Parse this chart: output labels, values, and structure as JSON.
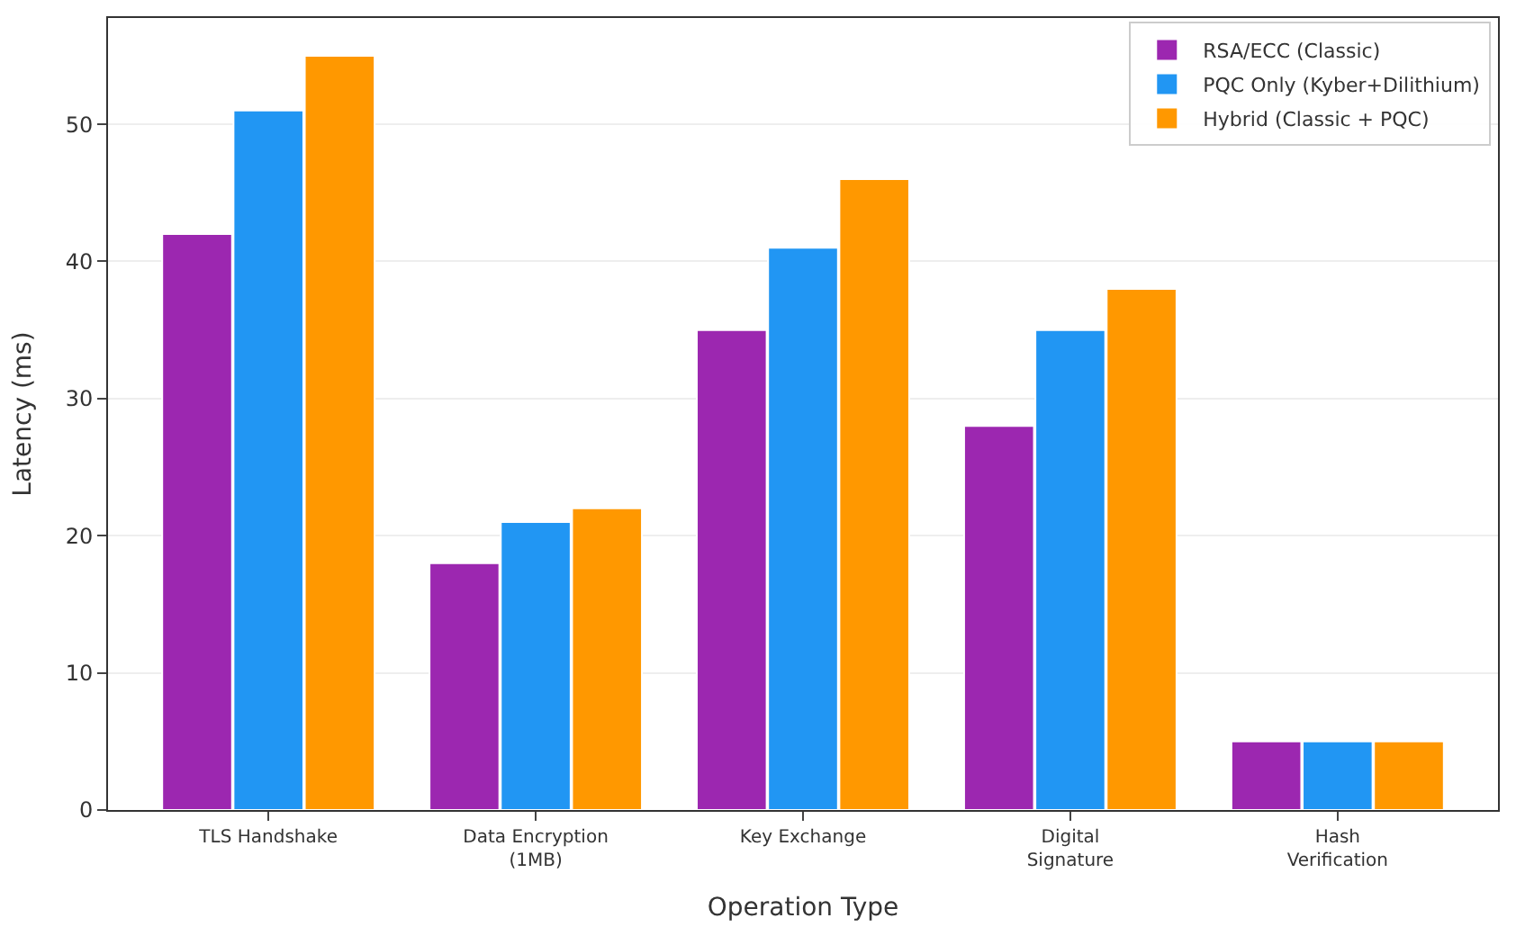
{
  "chart_data": {
    "type": "bar",
    "xlabel": "Operation Type",
    "ylabel": "Latency (ms)",
    "categories": [
      "TLS Handshake",
      "Data Encryption\n(1MB)",
      "Key Exchange",
      "Digital\nSignature",
      "Hash\nVerification"
    ],
    "series": [
      {
        "name": "RSA/ECC (Classic)",
        "color": "#9c27b0",
        "values": [
          42,
          18,
          35,
          28,
          5
        ]
      },
      {
        "name": "PQC Only (Kyber+Dilithium)",
        "color": "#2196f3",
        "values": [
          51,
          21,
          41,
          35,
          5
        ]
      },
      {
        "name": "Hybrid (Classic + PQC)",
        "color": "#ff9800",
        "values": [
          55,
          22,
          46,
          38,
          5
        ]
      }
    ],
    "ylim": [
      0,
      57.75
    ],
    "yticks": [
      0,
      10,
      20,
      30,
      40,
      50
    ],
    "grid": "y",
    "legend": "top right"
  }
}
